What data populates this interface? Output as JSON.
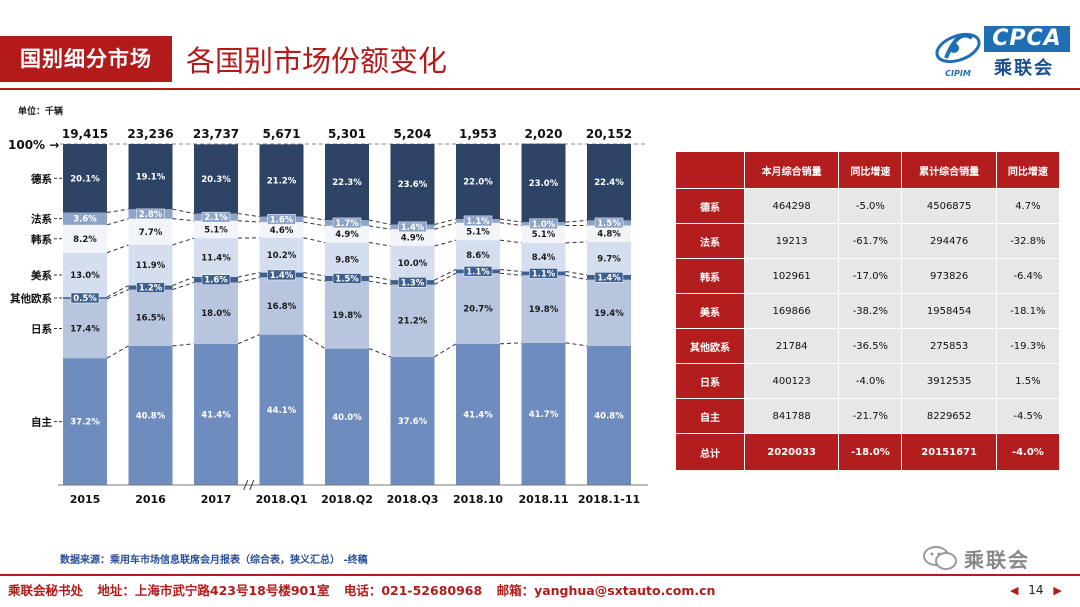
{
  "header": {
    "section_tag": "国别细分市场",
    "title": "各国别市场份额变化",
    "logo_text": "CPCA",
    "logo_sub": "乘联会",
    "logo_mark_text": "CIPIM"
  },
  "unit_label": "单位：千辆",
  "chart_data": {
    "type": "bar",
    "stacked": true,
    "normalized": true,
    "title": "各国别市场份额变化",
    "unit": "千辆",
    "categories": [
      "2015",
      "2016",
      "2017",
      "2018.Q1",
      "2018.Q2",
      "2018.Q3",
      "2018.10",
      "2018.11",
      "2018.1-11"
    ],
    "totals": [
      "19,415",
      "23,236",
      "23,737",
      "5,671",
      "5,301",
      "5,204",
      "1,953",
      "2,020",
      "20,152"
    ],
    "y_top_label": "100%",
    "ylim": [
      0,
      100
    ],
    "series": [
      {
        "name": "自主",
        "color": "#6f8cbf",
        "text_color": "#ffffff",
        "values": [
          37.2,
          40.8,
          41.4,
          44.1,
          40.0,
          37.6,
          41.4,
          41.7,
          40.8
        ],
        "labels": [
          "37.2%",
          "40.8%",
          "41.4%",
          "44.1%",
          "40.0%",
          "37.6%",
          "41.4%",
          "41.7%",
          "40.8%"
        ]
      },
      {
        "name": "日系",
        "color": "#b7c5de",
        "text_color": "#1a1a1a",
        "values": [
          17.4,
          16.5,
          18.0,
          16.8,
          19.8,
          21.2,
          20.7,
          19.8,
          19.4
        ],
        "labels": [
          "17.4%",
          "16.5%",
          "18.0%",
          "16.8%",
          "19.8%",
          "21.2%",
          "20.7%",
          "19.8%",
          "19.4%"
        ]
      },
      {
        "name": "其他欧系",
        "color": "#3f5f8f",
        "text_color": "#ffffff",
        "values": [
          0.5,
          1.2,
          1.6,
          1.4,
          1.5,
          1.3,
          1.1,
          1.1,
          1.4
        ],
        "labels": [
          "0.5%",
          "1.2%",
          "1.6%",
          "1.4%",
          "1.5%",
          "1.3%",
          "1.1%",
          "1.1%",
          "1.4%"
        ]
      },
      {
        "name": "美系",
        "color": "#d5deee",
        "text_color": "#1a1a1a",
        "values": [
          13.0,
          11.9,
          11.4,
          10.2,
          9.8,
          10.0,
          8.6,
          8.4,
          9.7
        ],
        "labels": [
          "13.0%",
          "11.9%",
          "11.4%",
          "10.2%",
          "9.8%",
          "10.0%",
          "8.6%",
          "8.4%",
          "9.7%"
        ]
      },
      {
        "name": "韩系",
        "color": "#f1f4f9",
        "text_color": "#1a1a1a",
        "values": [
          8.2,
          7.7,
          5.1,
          4.6,
          4.9,
          4.9,
          5.1,
          5.1,
          4.8
        ],
        "labels": [
          "8.2%",
          "7.7%",
          "5.1%",
          "4.6%",
          "4.9%",
          "4.9%",
          "5.1%",
          "5.1%",
          "4.8%"
        ]
      },
      {
        "name": "法系",
        "color": "#8ea3c8",
        "text_color": "#ffffff",
        "values": [
          3.6,
          2.8,
          2.1,
          1.6,
          1.7,
          1.4,
          1.1,
          1.0,
          1.5
        ],
        "labels": [
          "3.6%",
          "2.8%",
          "2.1%",
          "1.6%",
          "1.7%",
          "1.4%",
          "1.1%",
          "1.0%",
          "1.5%"
        ]
      },
      {
        "name": "德系",
        "color": "#2e4466",
        "text_color": "#ffffff",
        "values": [
          20.1,
          19.1,
          20.3,
          21.2,
          22.3,
          23.6,
          22.0,
          23.0,
          22.4
        ],
        "labels": [
          "20.1%",
          "19.1%",
          "20.3%",
          "21.2%",
          "22.3%",
          "23.6%",
          "22.0%",
          "23.0%",
          "22.4%"
        ]
      }
    ]
  },
  "table": {
    "headers": [
      "本月综合销量",
      "同比增速",
      "累计综合销量",
      "同比增速"
    ],
    "rows": [
      {
        "label": "德系",
        "cells": [
          "464298",
          "-5.0%",
          "4506875",
          "4.7%"
        ]
      },
      {
        "label": "法系",
        "cells": [
          "19213",
          "-61.7%",
          "294476",
          "-32.8%"
        ]
      },
      {
        "label": "韩系",
        "cells": [
          "102961",
          "-17.0%",
          "973826",
          "-6.4%"
        ]
      },
      {
        "label": "美系",
        "cells": [
          "169866",
          "-38.2%",
          "1958454",
          "-18.1%"
        ]
      },
      {
        "label": "其他欧系",
        "cells": [
          "21784",
          "-36.5%",
          "275853",
          "-19.3%"
        ]
      },
      {
        "label": "日系",
        "cells": [
          "400123",
          "-4.0%",
          "3912535",
          "1.5%"
        ]
      },
      {
        "label": "自主",
        "cells": [
          "841788",
          "-21.7%",
          "8229652",
          "-4.5%"
        ]
      }
    ],
    "total": {
      "label": "总计",
      "cells": [
        "2020033",
        "-18.0%",
        "20151671",
        "-4.0%"
      ]
    }
  },
  "data_source": "数据来源：乘用车市场信息联席会月报表（综合表，狭义汇总） -终稿",
  "footer": {
    "org": "乘联会秘书处",
    "address": "地址：上海市武宁路423号18号楼901室",
    "phone": "电话：021-52680968",
    "email": "邮箱：yanghua@sxtauto.com.cn",
    "page": "14"
  },
  "watermark": "乘联会",
  "colors": {
    "brand_red": "#b31b1b",
    "brand_blue": "#1f6fb4"
  }
}
